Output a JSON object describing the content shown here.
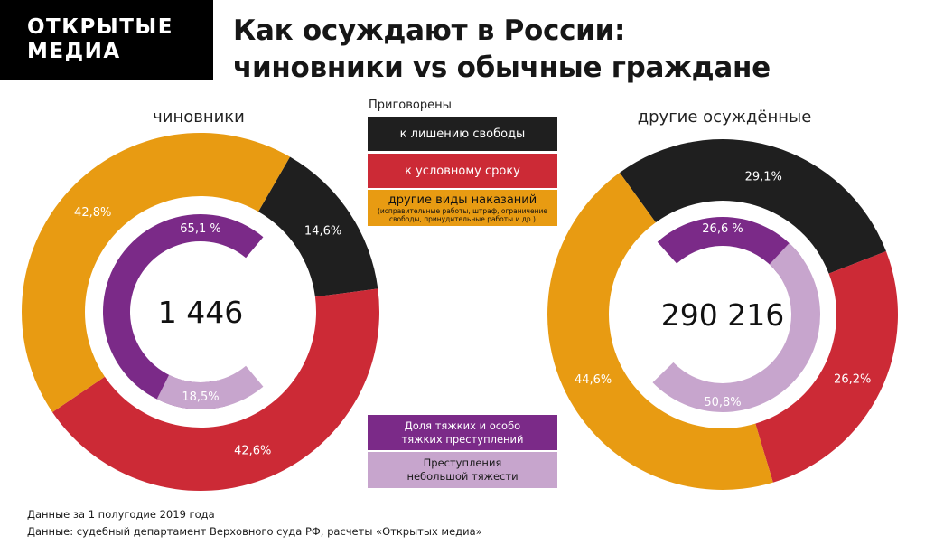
{
  "logo": {
    "line1": "ОТКРЫТЫЕ",
    "line2": "МЕДИА"
  },
  "title": {
    "line1": "Как осуждают в России:",
    "line2": "чиновники vs обычные граждане"
  },
  "legend": {
    "heading": "Приговорены",
    "prison": "к лишению свободы",
    "conditional": "к условному сроку",
    "other": "другие виды наказаний",
    "other_note": "(исправительные работы, штраф, ограничение свободы, принудительные работы и др.)",
    "grave_line1": "Доля тяжких и особо",
    "grave_line2": "тяжких преступлений",
    "minor_line1": "Преступления",
    "minor_line2": "небольшой тяжести"
  },
  "colors": {
    "prison": "#1f1f1f",
    "conditional": "#cc2a36",
    "other": "#e89b12",
    "grave": "#7b2a88",
    "minor": "#c7a5cd"
  },
  "footnotes": {
    "line1": "Данные за 1 полугодие 2019 года",
    "line2": "Данные: судебный департамент Верховного суда РФ, расчеты «Открытых медиа»"
  },
  "chart_data": [
    {
      "type": "pie",
      "title": "чиновники",
      "center_label": "1 446",
      "outer": {
        "categories": [
          "к лишению свободы",
          "к условному сроку",
          "другие виды наказаний"
        ],
        "values": [
          14.6,
          42.6,
          42.8
        ],
        "labels": [
          "14,6%",
          "42,6%",
          "42,8%"
        ]
      },
      "inner": {
        "categories": [
          "Доля тяжких и особо тяжких преступлений",
          "Преступления небольшой тяжести"
        ],
        "values": [
          65.1,
          18.5
        ],
        "labels": [
          "65,1 %",
          "18,5%"
        ]
      }
    },
    {
      "type": "pie",
      "title": "другие осуждённые",
      "center_label": "290 216",
      "outer": {
        "categories": [
          "к лишению свободы",
          "к условному сроку",
          "другие виды наказаний"
        ],
        "values": [
          29.1,
          26.2,
          44.6
        ],
        "labels": [
          "29,1%",
          "26,2%",
          "44,6%"
        ]
      },
      "inner": {
        "categories": [
          "Доля тяжких и особо тяжких преступлений",
          "Преступления небольшой тяжести"
        ],
        "values": [
          26.6,
          50.8
        ],
        "labels": [
          "26,6 %",
          "50,8%"
        ]
      }
    }
  ]
}
